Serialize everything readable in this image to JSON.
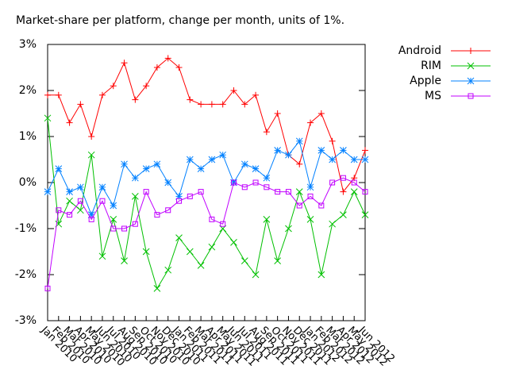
{
  "chart_data": {
    "type": "line",
    "title": "Market-share per platform, change per month, units of 1%.",
    "categories": [
      "Jan 2010",
      "Feb 2010",
      "Mar 2010",
      "Apr 2010",
      "May 2010",
      "Jun 2010",
      "Jul 2010",
      "Aug 2010",
      "Sep 2010",
      "Oct 2010",
      "Nov 2010",
      "Dec 2010",
      "Jan 2011",
      "Feb 2011",
      "Mar 2011",
      "Apr 2011",
      "May 2011",
      "Jun 2011",
      "Jul 2011",
      "Aug 2011",
      "Sep 2011",
      "Oct 2011",
      "Nov 2011",
      "Dec 2011",
      "Jan 2012",
      "Feb 2012",
      "Mar 2012",
      "Apr 2012",
      "May 2012",
      "Jun 2012"
    ],
    "series": [
      {
        "name": "Android",
        "color": "#ff0000",
        "marker": "plus",
        "values": [
          1.9,
          1.9,
          1.3,
          1.7,
          1.0,
          1.9,
          2.1,
          2.6,
          1.8,
          2.1,
          2.5,
          2.7,
          2.5,
          1.8,
          1.7,
          1.7,
          1.7,
          2.0,
          1.7,
          1.9,
          1.1,
          1.5,
          0.6,
          0.4,
          1.3,
          1.5,
          0.9,
          -0.2,
          0.1,
          0.7
        ]
      },
      {
        "name": "RIM",
        "color": "#00c000",
        "marker": "cross",
        "values": [
          1.4,
          -0.9,
          -0.4,
          -0.6,
          0.6,
          -1.6,
          -0.8,
          -1.7,
          -0.3,
          -1.5,
          -2.3,
          -1.9,
          -1.2,
          -1.5,
          -1.8,
          -1.4,
          -1.0,
          -1.3,
          -1.7,
          -2.0,
          -0.8,
          -1.7,
          -1.0,
          -0.2,
          -0.8,
          -2.0,
          -0.9,
          -0.7,
          -0.2,
          -0.7
        ]
      },
      {
        "name": "Apple",
        "color": "#0080ff",
        "marker": "star",
        "values": [
          -0.2,
          0.3,
          -0.2,
          -0.1,
          -0.7,
          -0.1,
          -0.5,
          0.4,
          0.1,
          0.3,
          0.4,
          0.0,
          -0.3,
          0.5,
          0.3,
          0.5,
          0.6,
          0.0,
          0.4,
          0.3,
          0.1,
          0.7,
          0.6,
          0.9,
          -0.1,
          0.7,
          0.5,
          0.7,
          0.5,
          0.5
        ]
      },
      {
        "name": "MS",
        "color": "#c000ff",
        "marker": "square",
        "values": [
          -2.3,
          -0.6,
          -0.7,
          -0.4,
          -0.8,
          -0.4,
          -1.0,
          -1.0,
          -0.9,
          -0.2,
          -0.7,
          -0.6,
          -0.4,
          -0.3,
          -0.2,
          -0.8,
          -0.9,
          0.0,
          -0.1,
          0.0,
          -0.1,
          -0.2,
          -0.2,
          -0.5,
          -0.3,
          -0.5,
          0.0,
          0.1,
          0.0,
          -0.2
        ]
      }
    ],
    "ylim": [
      -3,
      3
    ],
    "yticks": [
      {
        "value": -3,
        "label": "-3%"
      },
      {
        "value": -2,
        "label": "-2%"
      },
      {
        "value": -1,
        "label": "-1%"
      },
      {
        "value": 0,
        "label": "0%"
      },
      {
        "value": 1,
        "label": "1%"
      },
      {
        "value": 2,
        "label": "2%"
      },
      {
        "value": 3,
        "label": "3%"
      }
    ],
    "legend": "outside-right",
    "grid": false
  }
}
